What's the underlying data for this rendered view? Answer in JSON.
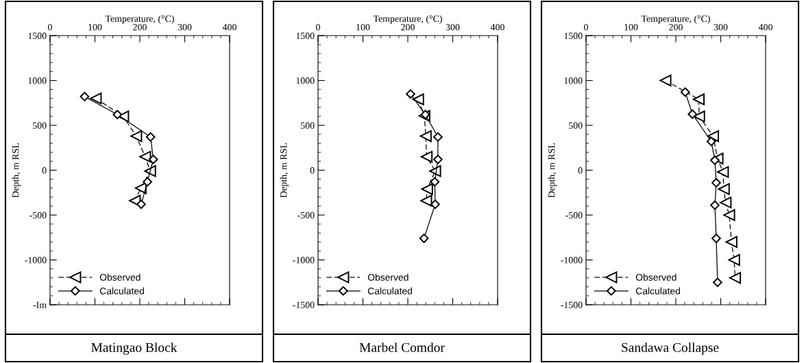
{
  "chart_data": [
    {
      "type": "line",
      "title": "Matingao Block",
      "xlabel": "Temperature, (°C)",
      "ylabel": "Depth, m RSL",
      "xlim": [
        0,
        400
      ],
      "xticks": [
        0,
        100,
        200,
        300,
        400
      ],
      "ylim": [
        -1500,
        1500
      ],
      "yticks": [
        {
          "value": -1500,
          "label": "-Im"
        },
        -1000,
        -500,
        0,
        500,
        1000,
        1500
      ],
      "grid": false,
      "legend": "bottom left",
      "series": [
        {
          "name": "Observed",
          "color": "#000000",
          "marker": "triangle",
          "line_style": "dashed",
          "x": [
            102,
            163,
            192,
            212,
            223,
            202,
            189
          ],
          "values": [
            800,
            600,
            380,
            150,
            -10,
            -200,
            -340
          ]
        },
        {
          "name": "Calculated",
          "color": "#000000",
          "marker": "diamond",
          "line_style": "solid",
          "x": [
            77,
            150,
            224,
            230,
            217,
            203
          ],
          "values": [
            820,
            620,
            370,
            120,
            -130,
            -380
          ]
        }
      ]
    },
    {
      "type": "line",
      "title": "Marbel Comdor",
      "xlabel": "Temperature, (°C)",
      "ylabel": "Depth, m RSL",
      "xlim": [
        0,
        400
      ],
      "xticks": [
        0,
        100,
        200,
        300,
        400
      ],
      "ylim": [
        -1500,
        1500
      ],
      "yticks": [
        -1500,
        -1000,
        -500,
        0,
        500,
        1000,
        1500
      ],
      "grid": false,
      "legend": "bottom left",
      "series": [
        {
          "name": "Observed",
          "color": "#000000",
          "marker": "triangle",
          "line_style": "dashed",
          "x": [
            223,
            237,
            240,
            242,
            261,
            243,
            241
          ],
          "values": [
            790,
            605,
            380,
            150,
            -10,
            -210,
            -340
          ]
        },
        {
          "name": "Calculated",
          "color": "#000000",
          "marker": "diamond",
          "line_style": "solid",
          "x": [
            206,
            239,
            267,
            267,
            260,
            261,
            236
          ],
          "values": [
            850,
            620,
            370,
            120,
            -130,
            -380,
            -760
          ]
        }
      ]
    },
    {
      "type": "line",
      "title": "Sandawa Collapse",
      "xlabel": "Temperature, (°C)",
      "ylabel": "Depth, m RSL",
      "xlim": [
        0,
        400
      ],
      "xticks": [
        0,
        100,
        200,
        300,
        400
      ],
      "ylim": [
        -1500,
        1500
      ],
      "yticks": [
        -1500,
        -1000,
        -500,
        0,
        500,
        1000,
        1500
      ],
      "grid": false,
      "legend": "bottom left",
      "series": [
        {
          "name": "Observed",
          "color": "#000000",
          "marker": "triangle",
          "line_style": "dashed",
          "x": [
            177,
            251,
            252,
            283,
            293,
            305,
            307,
            311,
            319,
            324,
            330,
            332
          ],
          "values": [
            1000,
            790,
            600,
            380,
            130,
            -20,
            -210,
            -360,
            -500,
            -800,
            -1000,
            -1200
          ]
        },
        {
          "name": "Calculated",
          "color": "#000000",
          "marker": "diamond",
          "line_style": "solid",
          "x": [
            221,
            237,
            279,
            287,
            290,
            287,
            290,
            293
          ],
          "values": [
            870,
            625,
            320,
            110,
            -140,
            -390,
            -760,
            -1250
          ]
        }
      ]
    }
  ]
}
